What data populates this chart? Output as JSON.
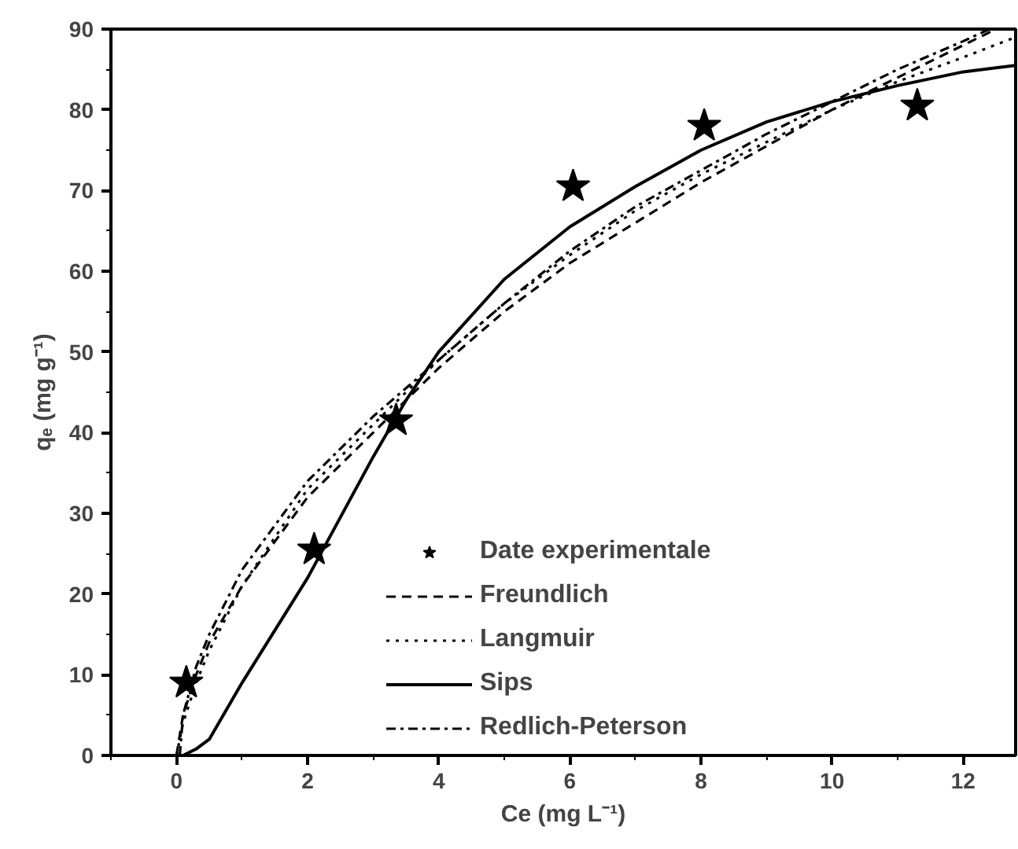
{
  "chart_data": {
    "type": "line",
    "xlabel": "Ce (mg L⁻¹)",
    "ylabel": "qₑ (mg g⁻¹)",
    "xlim": [
      -1,
      12.8
    ],
    "ylim": [
      0,
      90
    ],
    "xticks": [
      {
        "value": -1,
        "label": null
      },
      0,
      {
        "value": 1,
        "label": null
      },
      2,
      {
        "value": 3,
        "label": null
      },
      4,
      {
        "value": 5,
        "label": null
      },
      6,
      {
        "value": 7,
        "label": null
      },
      8,
      {
        "value": 9,
        "label": null
      },
      10,
      {
        "value": 11,
        "label": null
      },
      12
    ],
    "yticks": [
      0,
      {
        "value": 5,
        "label": null
      },
      10,
      {
        "value": 15,
        "label": null
      },
      20,
      {
        "value": 25,
        "label": null
      },
      30,
      {
        "value": 35,
        "label": null
      },
      40,
      {
        "value": 45,
        "label": null
      },
      50,
      {
        "value": 55,
        "label": null
      },
      60,
      {
        "value": 65,
        "label": null
      },
      70,
      {
        "value": 75,
        "label": null
      },
      80,
      {
        "value": 85,
        "label": null
      },
      90
    ],
    "grid": false,
    "legend": "bottom",
    "series": [
      {
        "name": "Date experimentale",
        "type": "scatter",
        "marker": "star",
        "color": "#000000",
        "x": [
          0.15,
          2.1,
          3.35,
          6.05,
          8.05,
          11.3
        ],
        "values": [
          9,
          25.5,
          41.5,
          70.5,
          78,
          80.5
        ]
      },
      {
        "name": "Freundlich",
        "line_style": "dashed",
        "color": "#000000",
        "x": [
          0,
          0.1,
          0.3,
          0.5,
          1,
          2,
          3,
          4,
          5,
          6,
          7,
          8,
          9,
          10,
          11,
          12,
          12.5
        ],
        "values": [
          0,
          5,
          10,
          14,
          21,
          32,
          40,
          48,
          55,
          61,
          66,
          71,
          75.5,
          80,
          84,
          88,
          90
        ]
      },
      {
        "name": "Langmuir",
        "line_style": "dotted",
        "color": "#000000",
        "x": [
          0,
          0.1,
          0.3,
          0.5,
          1,
          2,
          3,
          4,
          5,
          6,
          7,
          8,
          9,
          10,
          11,
          12,
          12.8
        ],
        "values": [
          0,
          4,
          9,
          13,
          21,
          33,
          41,
          49,
          56,
          62,
          67.5,
          72,
          76,
          80,
          83.5,
          86.5,
          89
        ]
      },
      {
        "name": "Sips",
        "line_style": "solid",
        "color": "#000000",
        "x": [
          0.1,
          0.3,
          0.5,
          1,
          1.5,
          2,
          2.5,
          3,
          3.5,
          4,
          5,
          6,
          7,
          8,
          9,
          10,
          11,
          12,
          12.8
        ],
        "values": [
          0,
          0.8,
          2,
          9,
          15.5,
          22,
          29.5,
          37,
          44,
          50,
          59,
          65.5,
          70.5,
          75,
          78.5,
          81,
          83,
          84.7,
          85.5
        ]
      },
      {
        "name": "Redlich-Peterson",
        "line_style": "dashdot",
        "color": "#000000",
        "x": [
          0.05,
          0.1,
          0.3,
          0.5,
          1,
          2,
          3,
          4,
          5,
          6,
          7,
          8,
          9,
          10,
          11,
          12,
          12.4
        ],
        "values": [
          0,
          5,
          11,
          15,
          23,
          34,
          42,
          49,
          56,
          62.5,
          68,
          72.5,
          77,
          81,
          85,
          88.5,
          90
        ]
      }
    ]
  }
}
